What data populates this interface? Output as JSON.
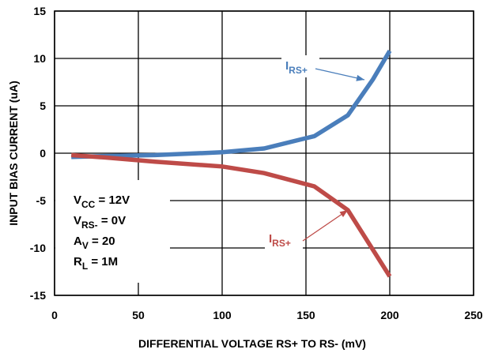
{
  "chart_data": {
    "type": "line",
    "title": "",
    "xlabel": "DIFFERENTIAL VOLTAGE RS+ TO RS- (mV)",
    "ylabel": "INPUT BIAS CURRENT (uA)",
    "xlim": [
      0,
      250
    ],
    "ylim": [
      -15,
      15
    ],
    "x_ticks": [
      0,
      50,
      100,
      150,
      200,
      250
    ],
    "y_ticks": [
      -15,
      -10,
      -5,
      0,
      5,
      10,
      15
    ],
    "x_tick_labels": [
      "0",
      "50",
      "100",
      "150",
      "200",
      "250"
    ],
    "y_tick_labels": [
      "-15",
      "-10",
      "-5",
      "0",
      "5",
      "10",
      "15"
    ],
    "grid": true,
    "series": [
      {
        "name": "IRS+",
        "label_main": "I",
        "label_sub": "RS+",
        "color": "#4a7ebb",
        "points": [
          [
            10,
            -0.4
          ],
          [
            30,
            -0.3
          ],
          [
            60,
            -0.2
          ],
          [
            100,
            0.1
          ],
          [
            125,
            0.5
          ],
          [
            155,
            1.8
          ],
          [
            175,
            4.0
          ],
          [
            190,
            7.8
          ],
          [
            200,
            10.8
          ]
        ]
      },
      {
        "name": "IRS+",
        "label_main": "I",
        "label_sub": "RS+",
        "color": "#be4b48",
        "points": [
          [
            10,
            -0.2
          ],
          [
            30,
            -0.45
          ],
          [
            60,
            -0.9
          ],
          [
            100,
            -1.4
          ],
          [
            125,
            -2.1
          ],
          [
            155,
            -3.5
          ],
          [
            175,
            -6.0
          ],
          [
            200,
            -13.0
          ]
        ]
      }
    ],
    "conditions": [
      {
        "main": "V",
        "sub": "CC",
        "rest": " = 12V"
      },
      {
        "main": "V",
        "sub": "RS-",
        "rest": " = 0V"
      },
      {
        "main": "A",
        "sub": "V",
        "rest": " = 20"
      },
      {
        "main": "R",
        "sub": "L",
        "rest": " = 1M"
      }
    ]
  }
}
